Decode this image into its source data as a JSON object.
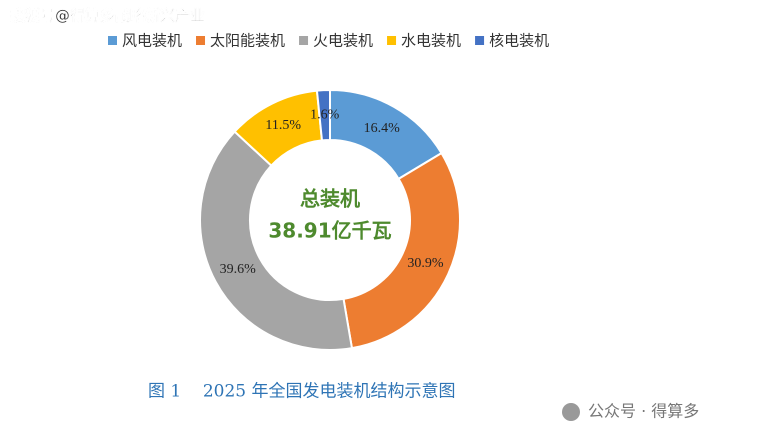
{
  "watermark": "搜狐号@得算多战略新兴产业",
  "footer": "公众号 · 得算多",
  "chart_data": {
    "type": "pie",
    "donut": true,
    "categories": [
      "风电装机",
      "太阳能装机",
      "火电装机",
      "水电装机",
      "核电装机"
    ],
    "values": [
      16.4,
      30.9,
      39.6,
      11.5,
      1.6
    ],
    "value_labels": [
      "16.4%",
      "30.9%",
      "39.6%",
      "11.5%",
      "1.6%"
    ],
    "colors": [
      "#5b9bd5",
      "#ed7d31",
      "#a5a5a5",
      "#ffc000",
      "#4472c4"
    ],
    "center_text": [
      "总装机",
      "38.91亿千瓦"
    ],
    "caption": "图 1    2025 年全国发电装机结构示意图",
    "legend": "top"
  }
}
